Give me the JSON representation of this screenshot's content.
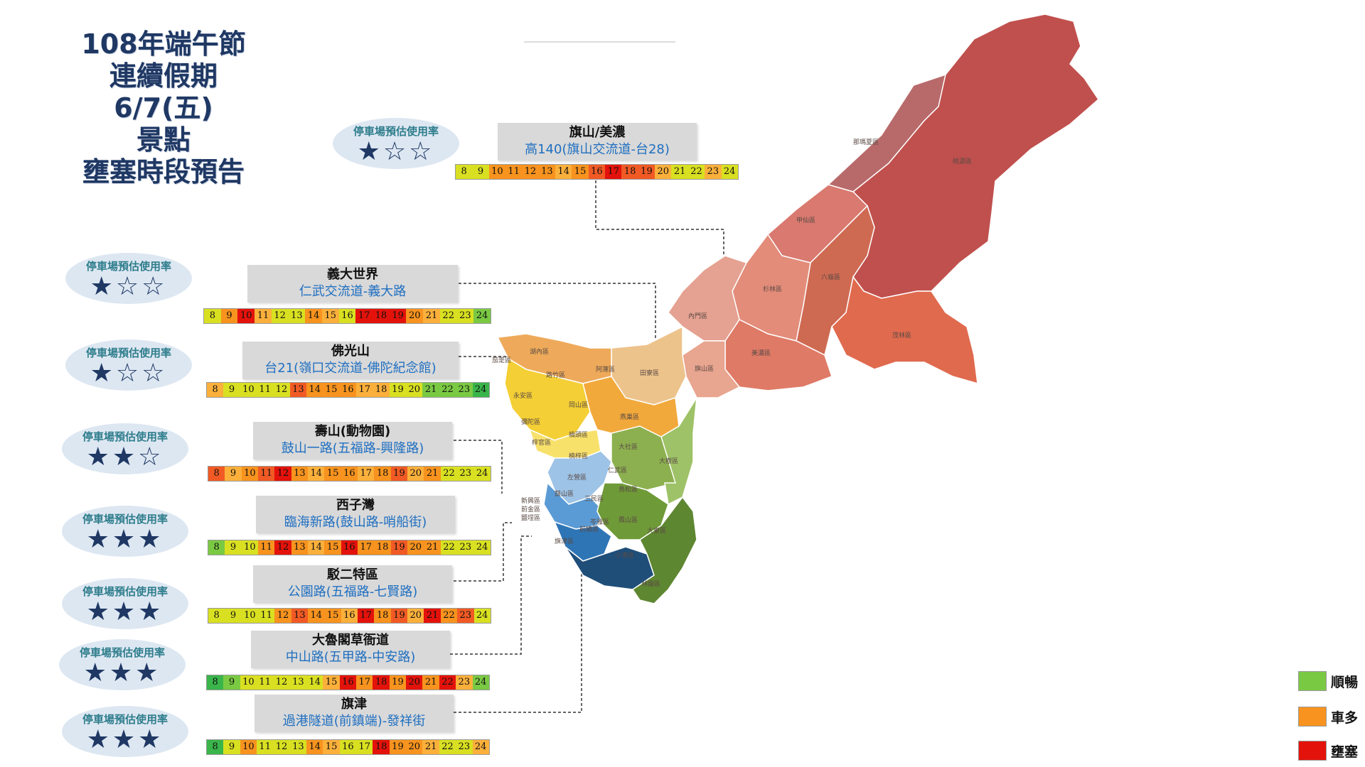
{
  "title": {
    "line1": "108年端午節",
    "line2": "連續假期",
    "line3": "6/7(五)",
    "line4": "景點",
    "line5": "壅塞時段預告"
  },
  "status_colors": {
    "smooth": "#7ac943",
    "busy": "#f7931e",
    "jam": "#e3120b",
    "light": "#d9e021",
    "mild": "#fbb03b",
    "heavy": "#f15a24",
    "darkgreen": "#39b54a"
  },
  "rating_label": "停車場預估使用率",
  "locations": [
    {
      "id": "qishan",
      "name": "旗山/美濃",
      "road": "高140(旗山交流道-台28)",
      "stars": "★☆☆",
      "rating": 1,
      "hours": [
        "8",
        "9",
        "10",
        "11",
        "12",
        "13",
        "14",
        "15",
        "16",
        "17",
        "18",
        "19",
        "20",
        "21",
        "22",
        "23",
        "24"
      ],
      "status": [
        "light",
        "light",
        "busy",
        "busy",
        "busy",
        "busy",
        "mild",
        "busy",
        "heavy",
        "jam",
        "heavy",
        "heavy",
        "mild",
        "light",
        "light",
        "mild",
        "light"
      ]
    },
    {
      "id": "yida",
      "name": "義大世界",
      "road": "仁武交流道-義大路",
      "stars": "★☆☆",
      "rating": 1,
      "hours": [
        "8",
        "9",
        "10",
        "11",
        "12",
        "13",
        "14",
        "15",
        "16",
        "17",
        "18",
        "19",
        "20",
        "21",
        "22",
        "23",
        "24"
      ],
      "status": [
        "light",
        "busy",
        "jam",
        "mild",
        "light",
        "light",
        "busy",
        "mild",
        "light",
        "jam",
        "jam",
        "jam",
        "busy",
        "mild",
        "light",
        "light",
        "smooth"
      ]
    },
    {
      "id": "foguang",
      "name": "佛光山",
      "road": "台21(嶺口交流道-佛陀紀念館)",
      "stars": "★☆☆",
      "rating": 1,
      "hours": [
        "8",
        "9",
        "10",
        "11",
        "12",
        "13",
        "14",
        "15",
        "16",
        "17",
        "18",
        "19",
        "20",
        "21",
        "22",
        "23",
        "24"
      ],
      "status": [
        "mild",
        "light",
        "light",
        "light",
        "light",
        "heavy",
        "busy",
        "busy",
        "busy",
        "mild",
        "mild",
        "light",
        "light",
        "smooth",
        "smooth",
        "smooth",
        "darkgreen"
      ]
    },
    {
      "id": "shoushan",
      "name": "壽山(動物園)",
      "road": "鼓山一路(五福路-興隆路)",
      "stars": "★★☆",
      "rating": 2,
      "hours": [
        "8",
        "9",
        "10",
        "11",
        "12",
        "13",
        "14",
        "15",
        "16",
        "17",
        "18",
        "19",
        "20",
        "21",
        "22",
        "23",
        "24"
      ],
      "status": [
        "heavy",
        "mild",
        "busy",
        "heavy",
        "jam",
        "busy",
        "mild",
        "busy",
        "busy",
        "mild",
        "busy",
        "heavy",
        "mild",
        "busy",
        "light",
        "light",
        "light"
      ]
    },
    {
      "id": "xiziwan",
      "name": "西子灣",
      "road": "臨海新路(鼓山路-哨船街)",
      "stars": "★★★",
      "rating": 3,
      "hours": [
        "8",
        "9",
        "10",
        "11",
        "12",
        "13",
        "14",
        "15",
        "16",
        "17",
        "18",
        "19",
        "20",
        "21",
        "22",
        "23",
        "24"
      ],
      "status": [
        "smooth",
        "light",
        "light",
        "busy",
        "jam",
        "busy",
        "mild",
        "busy",
        "jam",
        "busy",
        "busy",
        "heavy",
        "busy",
        "busy",
        "light",
        "light",
        "light"
      ]
    },
    {
      "id": "pier2",
      "name": "駁二特區",
      "road": "公園路(五福路-七賢路)",
      "stars": "★★★",
      "rating": 3,
      "hours": [
        "8",
        "9",
        "10",
        "11",
        "12",
        "13",
        "14",
        "15",
        "16",
        "17",
        "18",
        "19",
        "20",
        "21",
        "22",
        "23",
        "24"
      ],
      "status": [
        "light",
        "light",
        "light",
        "light",
        "busy",
        "heavy",
        "busy",
        "busy",
        "mild",
        "jam",
        "busy",
        "heavy",
        "mild",
        "jam",
        "busy",
        "heavy",
        "light"
      ]
    },
    {
      "id": "dalu",
      "name": "大魯閣草衙道",
      "road": "中山路(五甲路-中安路)",
      "stars": "★★★",
      "rating": 3,
      "hours": [
        "8",
        "9",
        "10",
        "11",
        "12",
        "13",
        "14",
        "15",
        "16",
        "17",
        "18",
        "19",
        "20",
        "21",
        "22",
        "23",
        "24"
      ],
      "status": [
        "darkgreen",
        "smooth",
        "light",
        "light",
        "light",
        "light",
        "light",
        "mild",
        "jam",
        "busy",
        "jam",
        "busy",
        "jam",
        "busy",
        "jam",
        "mild",
        "smooth"
      ]
    },
    {
      "id": "qijin",
      "name": "旗津",
      "road": "過港隧道(前鎮端)-發祥街",
      "stars": "★★★",
      "rating": 3,
      "hours": [
        "8",
        "9",
        "10",
        "11",
        "12",
        "13",
        "14",
        "15",
        "16",
        "17",
        "18",
        "19",
        "20",
        "21",
        "22",
        "23",
        "24"
      ],
      "status": [
        "darkgreen",
        "light",
        "busy",
        "light",
        "light",
        "light",
        "busy",
        "mild",
        "light",
        "light",
        "jam",
        "busy",
        "busy",
        "mild",
        "light",
        "light",
        "mild"
      ]
    }
  ],
  "districts": [
    "那瑪夏區",
    "桃源區",
    "甲仙區",
    "六龜區",
    "杉林區",
    "茂林區",
    "內門區",
    "美濃區",
    "旗山區",
    "湖內區",
    "路竹區",
    "阿蓮區",
    "田寮區",
    "茄萣區",
    "永安區",
    "岡山區",
    "燕巢區",
    "彌陀區",
    "橋頭區",
    "梓官區",
    "大社區",
    "楠梓區",
    "仁武區",
    "大樹區",
    "左營區",
    "鼓山區",
    "三民區",
    "鳥松區",
    "新興區",
    "前金區",
    "鹽埕區",
    "苓雅區",
    "鳳山區",
    "大寮區",
    "旗津區",
    "前鎮區",
    "小港區",
    "林園區"
  ],
  "legend": [
    {
      "label": "順暢",
      "color": "#7ac943"
    },
    {
      "label": "車多",
      "color": "#f7931e"
    },
    {
      "label": "壅塞",
      "color": "#e3120b"
    }
  ]
}
